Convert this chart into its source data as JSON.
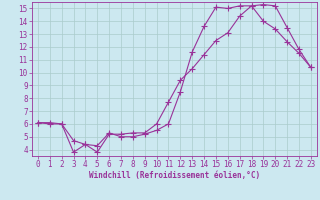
{
  "xlabel": "Windchill (Refroidissement éolien,°C)",
  "background_color": "#cce8f0",
  "grid_color": "#aacccc",
  "line_color": "#993399",
  "xlim": [
    -0.5,
    23.5
  ],
  "ylim": [
    3.5,
    15.5
  ],
  "xticks": [
    0,
    1,
    2,
    3,
    4,
    5,
    6,
    7,
    8,
    9,
    10,
    11,
    12,
    13,
    14,
    15,
    16,
    17,
    18,
    19,
    20,
    21,
    22,
    23
  ],
  "yticks": [
    4,
    5,
    6,
    7,
    8,
    9,
    10,
    11,
    12,
    13,
    14,
    15
  ],
  "line1_x": [
    0,
    1,
    2,
    3,
    4,
    5,
    6,
    7,
    8,
    9,
    10,
    11,
    12,
    13,
    14,
    15,
    16,
    17,
    18,
    19,
    20,
    21,
    22,
    23
  ],
  "line1_y": [
    6.1,
    6.1,
    6.0,
    4.7,
    4.4,
    4.3,
    5.3,
    5.0,
    5.0,
    5.2,
    5.5,
    6.0,
    8.5,
    11.6,
    13.6,
    15.1,
    15.0,
    15.2,
    15.2,
    14.0,
    13.4,
    12.4,
    11.5,
    10.4
  ],
  "line2_x": [
    0,
    1,
    2,
    3,
    4,
    5,
    6,
    7,
    8,
    9,
    10,
    11,
    12,
    13,
    14,
    15,
    16,
    17,
    18,
    19,
    20,
    21,
    22,
    23
  ],
  "line2_y": [
    6.1,
    6.0,
    6.0,
    3.8,
    4.4,
    3.8,
    5.2,
    5.2,
    5.3,
    5.3,
    6.0,
    7.7,
    9.4,
    10.3,
    11.4,
    12.5,
    13.1,
    14.4,
    15.2,
    15.3,
    15.2,
    13.5,
    11.8,
    10.4
  ],
  "tick_fontsize": 5.5,
  "xlabel_fontsize": 5.5,
  "marker_size": 2.0,
  "line_width": 0.8
}
